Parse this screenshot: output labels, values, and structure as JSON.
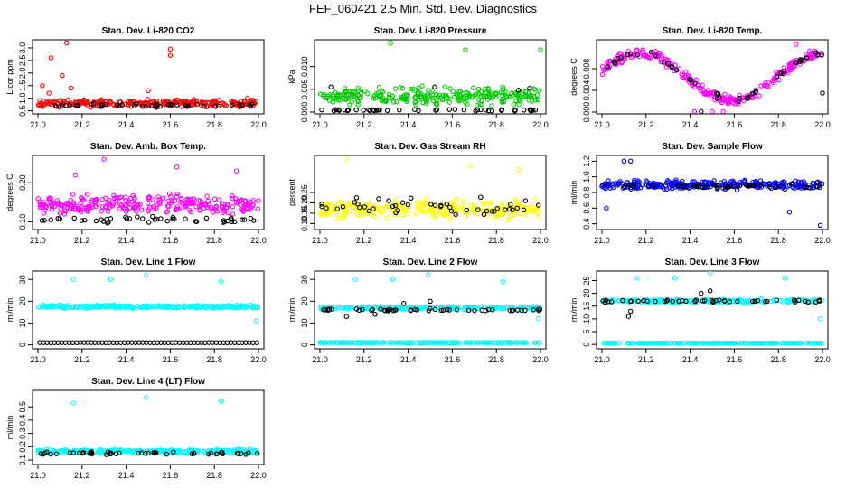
{
  "title": "FEF_060421  2.5 Min. Std. Dev. Diagnostics",
  "colors": {
    "red": "#ff0000",
    "green": "#00cc00",
    "magenta": "#ff00ff",
    "yellow": "#ffff00",
    "blue": "#0000ff",
    "cyan": "#00ffff",
    "black": "#000000"
  },
  "chart_data": [
    {
      "type": "scatter",
      "title": "Stan. Dev. Li-820 CO2",
      "ylabel": "Licor ppm",
      "xlim": [
        21.0,
        22.0
      ],
      "ylim": [
        0.45,
        3.25
      ],
      "xticks": [
        "21.0",
        "21.2",
        "21.4",
        "21.6",
        "21.8",
        "22.0"
      ],
      "yticks": [
        0.5,
        1.0,
        1.5,
        2.0,
        2.5,
        3.0
      ],
      "yticklabels": [
        "0.5",
        "1.0",
        "1.5",
        "2.0",
        "2.5",
        "3.0"
      ],
      "series": [
        {
          "name": "primary",
          "color": "red",
          "base": 0.8,
          "spread": 0.2,
          "n": 260,
          "outliers": [
            [
              21.13,
              3.2
            ],
            [
              21.6,
              2.95
            ],
            [
              21.6,
              2.7
            ],
            [
              21.06,
              2.6
            ],
            [
              21.05,
              1.2
            ],
            [
              21.11,
              1.9
            ],
            [
              21.15,
              1.4
            ],
            [
              21.5,
              1.3
            ],
            [
              21.95,
              1.0
            ],
            [
              21.02,
              1.5
            ]
          ]
        },
        {
          "name": "secondary",
          "color": "black",
          "base": 0.72,
          "spread": 0.08,
          "n": 45,
          "outliers": []
        }
      ]
    },
    {
      "type": "scatter",
      "title": "Stan. Dev. Li-820 Pressure",
      "ylabel": "kPa",
      "xlim": [
        21.0,
        22.0
      ],
      "ylim": [
        0.0,
        0.0155
      ],
      "xticks": [
        "21.0",
        "21.2",
        "21.4",
        "21.6",
        "21.8",
        "22.0"
      ],
      "yticks": [
        0.0,
        0.005,
        0.01
      ],
      "yticklabels": [
        "0.000",
        "0.005",
        "0.010"
      ],
      "series": [
        {
          "name": "primary",
          "color": "green",
          "base": 0.0035,
          "spread": 0.0026,
          "n": 260,
          "outliers": [
            [
              21.32,
              0.0152
            ],
            [
              21.66,
              0.0137
            ],
            [
              22.0,
              0.0137
            ]
          ]
        },
        {
          "name": "secondary",
          "color": "black",
          "base": 0.0004,
          "spread": 0.0003,
          "n": 45,
          "outliers": [
            [
              21.05,
              0.0055
            ],
            [
              21.52,
              0.0055
            ],
            [
              21.95,
              0.0052
            ],
            [
              21.9,
              0.0048
            ]
          ]
        }
      ]
    },
    {
      "type": "scatter",
      "title": "Stan. Dev. Li-820 Temp.",
      "ylabel": "degrees C",
      "xlim": [
        21.0,
        22.0
      ],
      "ylim": [
        0.0,
        0.013
      ],
      "xticks": [
        "21.0",
        "21.2",
        "21.4",
        "21.6",
        "21.8",
        "22.0"
      ],
      "yticks": [
        0.0,
        0.004,
        0.008
      ],
      "yticklabels": [
        "0.000",
        "0.004",
        "0.008"
      ],
      "series": [
        {
          "name": "primary",
          "color": "magenta",
          "pattern": "wave",
          "base": 0.0065,
          "spread": 0.0014,
          "n": 260,
          "outliers": [
            [
              21.42,
              0.0001
            ],
            [
              21.5,
              0.0001
            ],
            [
              21.55,
              0.0001
            ],
            [
              21.88,
              0.0125
            ]
          ]
        },
        {
          "name": "secondary",
          "color": "black",
          "pattern": "wave",
          "base": 0.0065,
          "spread": 0.0008,
          "n": 45,
          "outliers": [
            [
              22.0,
              0.0035
            ],
            [
              21.45,
              0.0001
            ]
          ]
        }
      ]
    },
    {
      "type": "scatter",
      "title": "Stan. Dev. Amb. Box Temp.",
      "ylabel": "degrees C",
      "xlim": [
        21.0,
        22.0
      ],
      "ylim": [
        0.085,
        0.265
      ],
      "xticks": [
        "21.0",
        "21.2",
        "21.4",
        "21.6",
        "21.8",
        "22.0"
      ],
      "yticks": [
        0.1,
        0.2
      ],
      "yticklabels": [
        "0.10",
        "0.20"
      ],
      "series": [
        {
          "name": "primary",
          "color": "magenta",
          "base": 0.145,
          "spread": 0.035,
          "n": 270,
          "outliers": [
            [
              21.3,
              0.26
            ],
            [
              21.63,
              0.24
            ],
            [
              21.17,
              0.22
            ],
            [
              21.9,
              0.23
            ]
          ]
        },
        {
          "name": "secondary",
          "color": "black",
          "base": 0.105,
          "spread": 0.012,
          "n": 45,
          "outliers": []
        }
      ]
    },
    {
      "type": "scatter",
      "title": "Stan. Dev. Gas Stream RH",
      "ylabel": "percent",
      "xlim": [
        21.0,
        22.0
      ],
      "ylim": [
        0.08,
        0.42
      ],
      "xticks": [
        "21.0",
        "21.2",
        "21.4",
        "21.6",
        "21.8",
        "22.0"
      ],
      "yticks": [
        0.1,
        0.15,
        0.2,
        0.25
      ],
      "yticklabels": [
        "0.10",
        "0.15",
        "0.20",
        "0.25"
      ],
      "series": [
        {
          "name": "primary",
          "color": "yellow",
          "base": 0.17,
          "spread": 0.06,
          "n": 270,
          "outliers": [
            [
              21.12,
              0.41
            ],
            [
              21.68,
              0.38
            ],
            [
              21.9,
              0.36
            ]
          ]
        },
        {
          "name": "secondary",
          "color": "black",
          "base": 0.18,
          "spread": 0.06,
          "n": 45,
          "outliers": []
        }
      ]
    },
    {
      "type": "scatter",
      "title": "Stan. Dev. Sample Flow",
      "ylabel": "ml/min",
      "xlim": [
        21.0,
        22.0
      ],
      "ylim": [
        0.35,
        1.25
      ],
      "xticks": [
        "21.0",
        "21.2",
        "21.4",
        "21.6",
        "21.8",
        "22.0"
      ],
      "yticks": [
        0.4,
        0.6,
        0.8,
        1.0,
        1.2
      ],
      "yticklabels": [
        "0.4",
        "0.6",
        "0.8",
        "1.0",
        "1.2"
      ],
      "series": [
        {
          "name": "primary",
          "color": "blue",
          "base": 0.9,
          "spread": 0.08,
          "n": 270,
          "outliers": [
            [
              21.99,
              0.38
            ],
            [
              21.85,
              0.55
            ],
            [
              21.02,
              0.6
            ],
            [
              21.1,
              1.2
            ],
            [
              21.13,
              1.2
            ]
          ]
        },
        {
          "name": "secondary",
          "color": "black",
          "base": 0.88,
          "spread": 0.05,
          "n": 45,
          "outliers": []
        }
      ]
    },
    {
      "type": "scatter",
      "title": "Stan. Dev. Line 1 Flow",
      "ylabel": "ml/min",
      "xlim": [
        21.0,
        22.0
      ],
      "ylim": [
        -1,
        33
      ],
      "xticks": [
        "21.0",
        "21.2",
        "21.4",
        "21.6",
        "21.8",
        "22.0"
      ],
      "yticks": [
        0,
        10,
        20,
        30
      ],
      "yticklabels": [
        "0",
        "10",
        "20",
        "30"
      ],
      "series": [
        {
          "name": "primary",
          "color": "cyan",
          "base": 17.5,
          "spread": 1.0,
          "n": 270,
          "outliers": [
            [
              21.16,
              30
            ],
            [
              21.33,
              30
            ],
            [
              21.49,
              32
            ],
            [
              21.83,
              29
            ],
            [
              21.99,
              11
            ]
          ]
        },
        {
          "name": "secondary",
          "color": "black",
          "base": 1.0,
          "spread": 0.05,
          "n": 60,
          "regular": true,
          "outliers": []
        }
      ]
    },
    {
      "type": "scatter",
      "title": "Stan. Dev. Line 2 Flow",
      "ylabel": "ml/min",
      "xlim": [
        21.0,
        22.0
      ],
      "ylim": [
        -1,
        33
      ],
      "xticks": [
        "21.0",
        "21.2",
        "21.4",
        "21.6",
        "21.8",
        "22.0"
      ],
      "yticks": [
        0,
        10,
        20,
        30
      ],
      "yticklabels": [
        "0",
        "10",
        "20",
        "30"
      ],
      "series": [
        {
          "name": "primary",
          "color": "cyan",
          "base": 17.0,
          "spread": 1.0,
          "n": 200,
          "outliers": [
            [
              21.16,
              30
            ],
            [
              21.33,
              30
            ],
            [
              21.49,
              32
            ],
            [
              21.83,
              29
            ],
            [
              21.99,
              12
            ]
          ]
        },
        {
          "name": "primary-low",
          "color": "cyan",
          "base": 1.0,
          "spread": 0.15,
          "n": 200,
          "outliers": []
        },
        {
          "name": "secondary",
          "color": "black",
          "base": 16.0,
          "spread": 0.8,
          "n": 50,
          "outliers": [
            [
              21.12,
              13
            ],
            [
              21.25,
              14
            ],
            [
              21.5,
              20
            ],
            [
              21.38,
              19
            ]
          ]
        }
      ]
    },
    {
      "type": "scatter",
      "title": "Stan. Dev. Line 3 Flow",
      "ylabel": "ml/min",
      "xlim": [
        21.0,
        22.0
      ],
      "ylim": [
        -1,
        28
      ],
      "xticks": [
        "21.0",
        "21.2",
        "21.4",
        "21.6",
        "21.8",
        "22.0"
      ],
      "yticks": [
        0,
        5,
        10,
        15,
        20,
        25
      ],
      "yticklabels": [
        "0",
        "5",
        "10",
        "15",
        "20",
        "25"
      ],
      "series": [
        {
          "name": "primary",
          "color": "cyan",
          "base": 17.0,
          "spread": 1.0,
          "n": 200,
          "outliers": [
            [
              21.16,
              26
            ],
            [
              21.33,
              26
            ],
            [
              21.49,
              28
            ],
            [
              21.83,
              26
            ],
            [
              21.99,
              10
            ]
          ]
        },
        {
          "name": "primary-low",
          "color": "cyan",
          "base": 0.5,
          "spread": 0.1,
          "n": 200,
          "outliers": []
        },
        {
          "name": "secondary",
          "color": "black",
          "base": 17.0,
          "spread": 0.6,
          "n": 50,
          "outliers": [
            [
              21.12,
              11
            ],
            [
              21.13,
              13
            ],
            [
              21.45,
              20
            ],
            [
              21.49,
              21
            ]
          ]
        }
      ]
    },
    {
      "type": "scatter",
      "title": "Stan. Dev. Line 4 (LT) Flow",
      "ylabel": "ml/min",
      "xlim": [
        21.0,
        22.0
      ],
      "ylim": [
        0.08,
        0.61
      ],
      "xticks": [
        "21.0",
        "21.2",
        "21.4",
        "21.6",
        "21.8",
        "22.0"
      ],
      "yticks": [
        0.1,
        0.2,
        0.3,
        0.4,
        0.5
      ],
      "yticklabels": [
        "0.1",
        "0.2",
        "0.3",
        "0.4",
        "0.5"
      ],
      "series": [
        {
          "name": "primary",
          "color": "cyan",
          "base": 0.165,
          "spread": 0.02,
          "n": 270,
          "outliers": [
            [
              21.16,
              0.53
            ],
            [
              21.49,
              0.57
            ],
            [
              21.83,
              0.54
            ]
          ]
        },
        {
          "name": "secondary",
          "color": "black",
          "base": 0.15,
          "spread": 0.015,
          "n": 55,
          "outliers": []
        }
      ]
    }
  ]
}
